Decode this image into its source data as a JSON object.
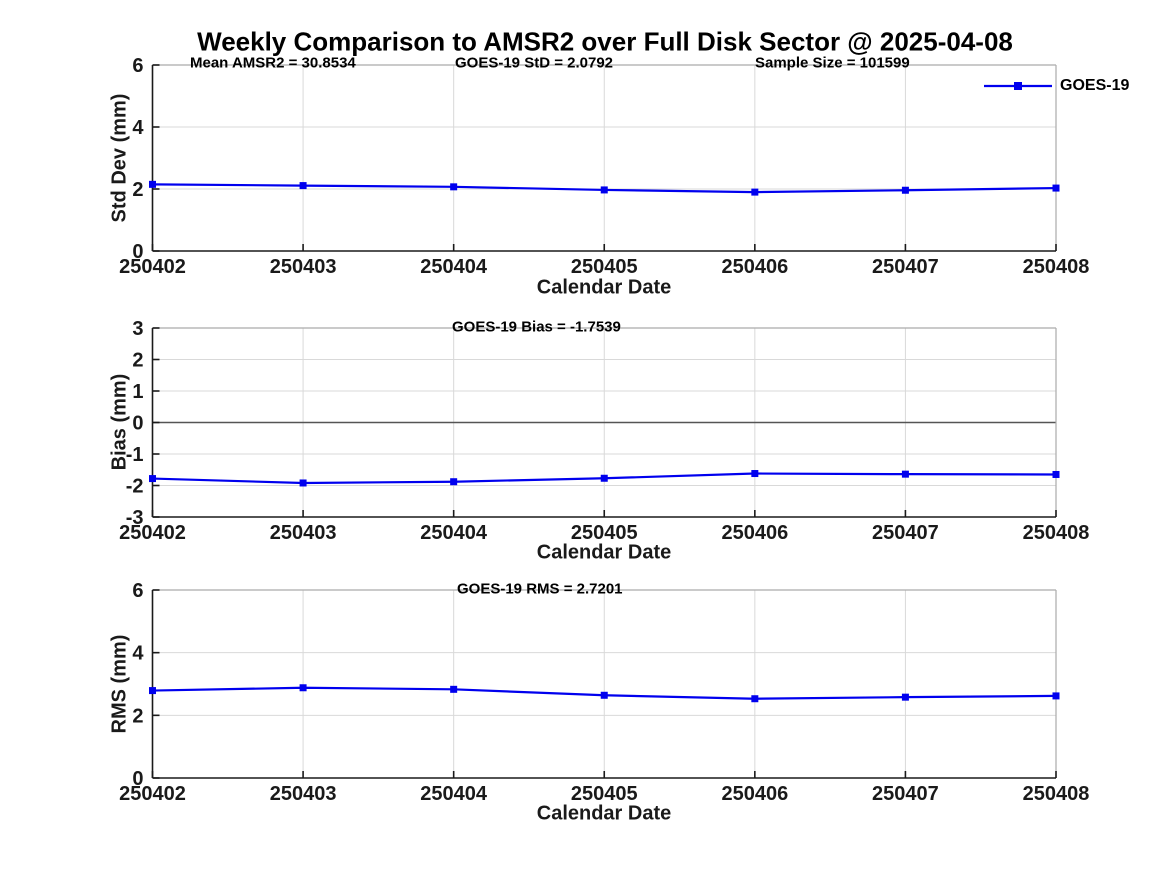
{
  "title": "Weekly Comparison to AMSR2 over Full Disk Sector @ 2025-04-08",
  "legend": {
    "label": "GOES-19",
    "position": "top-right-of-first-panel",
    "border": "none"
  },
  "colors": {
    "series_blue": "#0000ee",
    "grid": "#d9d9d9",
    "zero_line": "#555555",
    "spine_dark": "#1a1a1a",
    "spine_light": "#ababab",
    "background": "#ffffff"
  },
  "chart_data": [
    {
      "type": "line",
      "id": "std_dev",
      "ylabel": "Std Dev (mm)",
      "xlabel": "Calendar Date",
      "ylim": [
        0,
        6
      ],
      "yticks": [
        0,
        2,
        4,
        6
      ],
      "grid": true,
      "zero_line": false,
      "categories": [
        "250402",
        "250403",
        "250404",
        "250405",
        "250406",
        "250407",
        "250408"
      ],
      "series": [
        {
          "name": "GOES-19",
          "color": "#0000ee",
          "marker": "square",
          "values": [
            2.15,
            2.11,
            2.07,
            1.97,
            1.9,
            1.96,
            2.03
          ]
        }
      ],
      "annotations": [
        {
          "text": "Mean AMSR2 = 30.8534"
        },
        {
          "text": "GOES-19 StD = 2.0792"
        },
        {
          "text": "Sample Size = 101599"
        }
      ],
      "legend_entry": "GOES-19"
    },
    {
      "type": "line",
      "id": "bias",
      "ylabel": "Bias (mm)",
      "xlabel": "Calendar Date",
      "ylim": [
        -3,
        3
      ],
      "yticks": [
        -3,
        -2,
        -1,
        0,
        1,
        2,
        3
      ],
      "grid": true,
      "zero_line": true,
      "categories": [
        "250402",
        "250403",
        "250404",
        "250405",
        "250406",
        "250407",
        "250408"
      ],
      "series": [
        {
          "name": "GOES-19",
          "color": "#0000ee",
          "marker": "square",
          "values": [
            -1.78,
            -1.92,
            -1.88,
            -1.77,
            -1.62,
            -1.64,
            -1.65
          ]
        }
      ],
      "annotations": [
        {
          "text": "GOES-19 Bias  = -1.7539"
        }
      ]
    },
    {
      "type": "line",
      "id": "rms",
      "ylabel": "RMS (mm)",
      "xlabel": "Calendar Date",
      "ylim": [
        0,
        6
      ],
      "yticks": [
        0,
        2,
        4,
        6
      ],
      "grid": true,
      "zero_line": false,
      "categories": [
        "250402",
        "250403",
        "250404",
        "250405",
        "250406",
        "250407",
        "250408"
      ],
      "series": [
        {
          "name": "GOES-19",
          "color": "#0000ee",
          "marker": "square",
          "values": [
            2.79,
            2.88,
            2.83,
            2.64,
            2.53,
            2.58,
            2.62
          ]
        }
      ],
      "annotations": [
        {
          "text": "GOES-19 RMS = 2.7201"
        }
      ]
    }
  ]
}
